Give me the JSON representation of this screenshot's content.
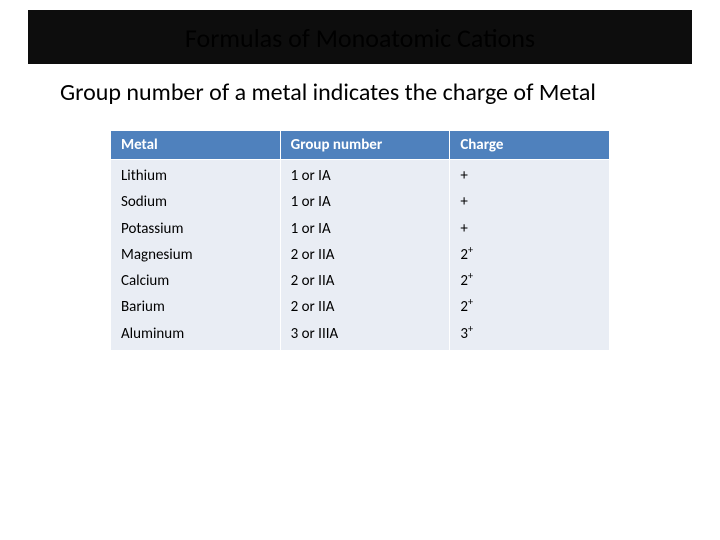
{
  "title": "Formulas of Monoatomic Cations",
  "subtitle": "Group number of a metal indicates the charge of Metal",
  "table": {
    "header_bg": "#4f81bd",
    "header_fg": "#ffffff",
    "body_bg": "#e9edf4",
    "body_fg": "#000000",
    "columns": [
      "Metal",
      "Group number",
      "Charge"
    ],
    "rows": [
      {
        "metal": "Lithium",
        "group": "1 or IA",
        "charge_base": "+",
        "charge_sup": ""
      },
      {
        "metal": "Sodium",
        "group": "1 or IA",
        "charge_base": "+",
        "charge_sup": ""
      },
      {
        "metal": "Potassium",
        "group": "1 or IA",
        "charge_base": "+",
        "charge_sup": ""
      },
      {
        "metal": "Magnesium",
        "group": "2 or IIA",
        "charge_base": "2",
        "charge_sup": "+"
      },
      {
        "metal": "Calcium",
        "group": "2 or IIA",
        "charge_base": "2",
        "charge_sup": "+"
      },
      {
        "metal": "Barium",
        "group": "2 or IIA",
        "charge_base": "2",
        "charge_sup": "+"
      },
      {
        "metal": "Aluminum",
        "group": "3 or IIIA",
        "charge_base": "3",
        "charge_sup": "+"
      }
    ]
  }
}
